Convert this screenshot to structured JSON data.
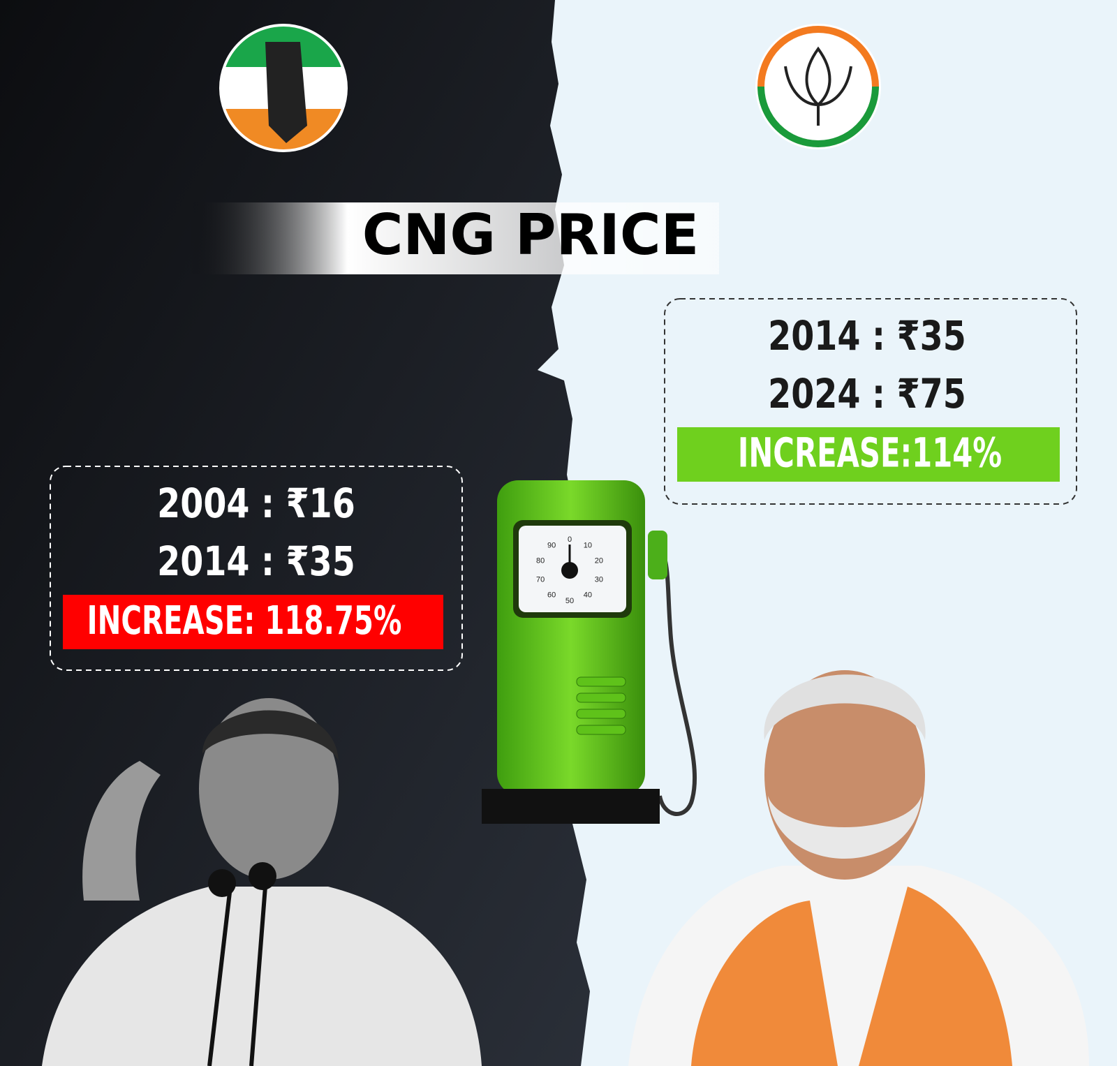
{
  "title": "CNG PRICE",
  "left_box": {
    "lines": [
      "2004 : ₹16",
      "2014 : ₹35"
    ],
    "increase": "INCREASE: 118.75%"
  },
  "right_box": {
    "lines": [
      "2014 : ₹35",
      "2024 : ₹75"
    ],
    "increase": "INCREASE:114%"
  },
  "gauge": {
    "labels": [
      "0",
      "10",
      "20",
      "30",
      "40",
      "50",
      "60",
      "70",
      "80",
      "90"
    ]
  }
}
